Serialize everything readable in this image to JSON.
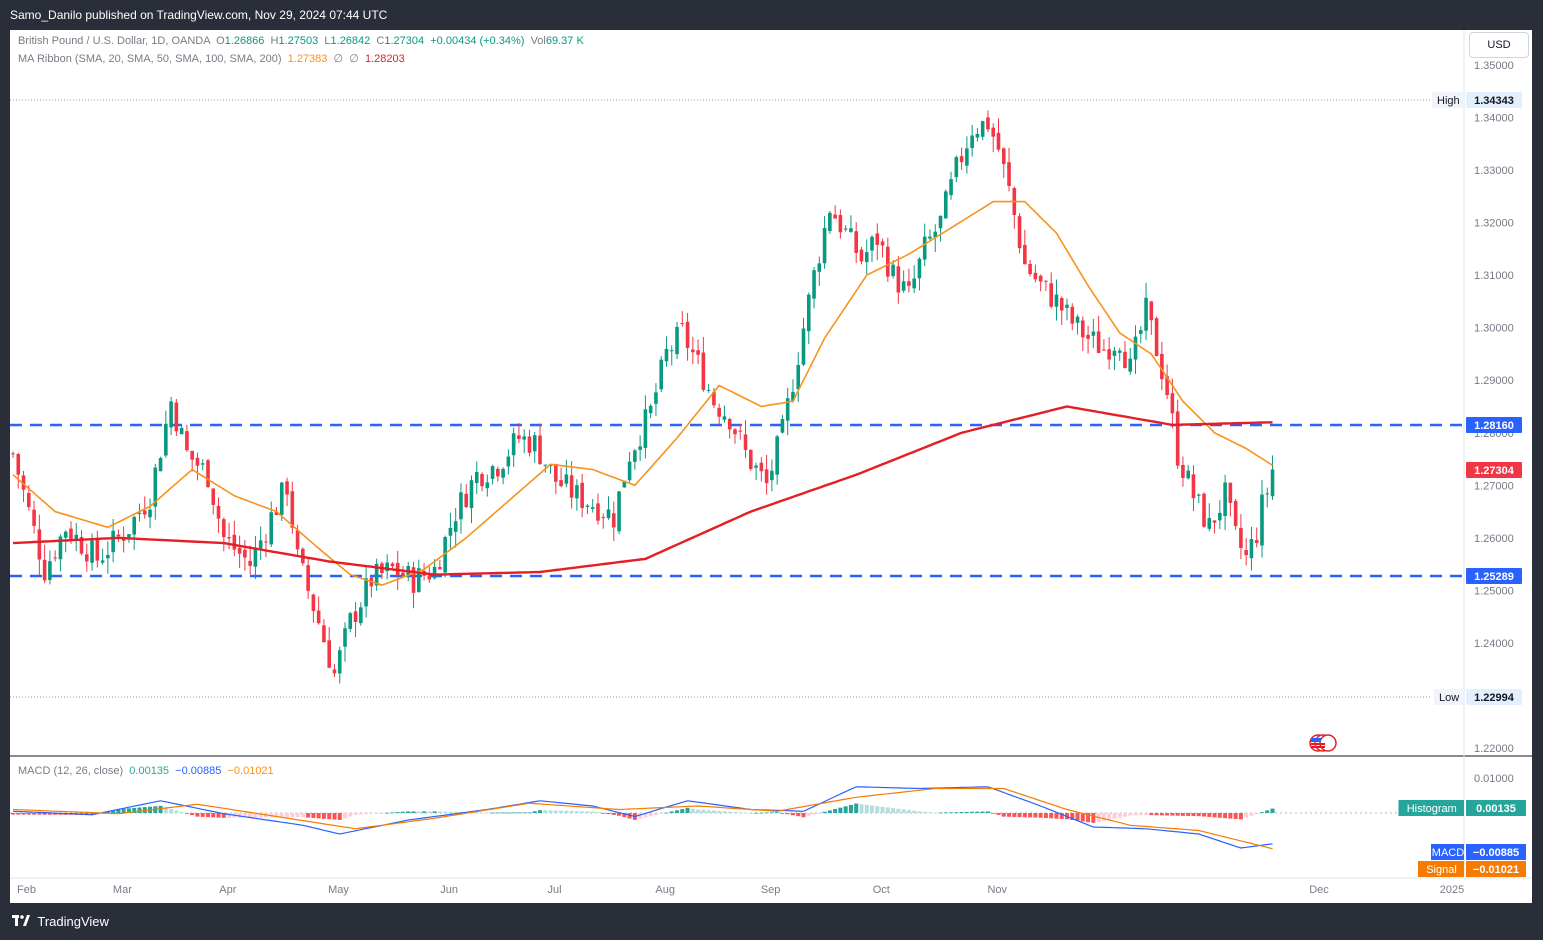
{
  "header": {
    "publisher": "Samo_Danilo published on TradingView.com, Nov 29, 2024 07:44 UTC"
  },
  "legend": {
    "symbol": "British Pound / U.S. Dollar, 1D, OANDA",
    "open_label": "O",
    "open": "1.26866",
    "high_label": "H",
    "high": "1.27503",
    "low_label": "L",
    "low": "1.26842",
    "close_label": "C",
    "close": "1.27304",
    "change": "+0.00434 (+0.34%)",
    "vol_label": "Vol",
    "vol": "69.37 K",
    "ma_ribbon": "MA Ribbon (SMA, 20, SMA, 50, SMA, 100, SMA, 200)",
    "ma20": "1.27383",
    "ma_empty1": "∅",
    "ma_empty2": "∅",
    "ma200": "1.28203",
    "macd": "MACD (12, 26, close)",
    "macd_hist": "0.00135",
    "macd_line": "−0.00885",
    "macd_signal": "−0.01021"
  },
  "currency_button": "USD",
  "footer": {
    "brand": "TradingView"
  },
  "colors": {
    "up": "#089981",
    "down": "#f23645",
    "ma20": "#f7931a",
    "ma200": "#e41e25",
    "level_line": "#2962ff",
    "macd": "#2962ff",
    "signal": "#f57c00",
    "hist_up_strong": "#26a69a",
    "hist_up_weak": "#b2dfdb",
    "hist_down_strong": "#ff5252",
    "hist_down_weak": "#ffcdd2"
  },
  "chart_data": {
    "type": "candlestick",
    "x_axis": {
      "labels": [
        "Feb",
        "Mar",
        "Apr",
        "May",
        "Jun",
        "Jul",
        "Aug",
        "Sep",
        "Oct",
        "Nov",
        "Dec",
        "2025"
      ]
    },
    "y_axis": {
      "range": [
        1.22,
        1.35
      ],
      "ticks": [
        "1.35000",
        "1.34000",
        "1.33000",
        "1.32000",
        "1.31000",
        "1.30000",
        "1.29000",
        "1.28000",
        "1.27000",
        "1.26000",
        "1.25000",
        "1.24000",
        "1.23000",
        "1.22000"
      ]
    },
    "markers": {
      "high_label": "High",
      "high_value": "1.34343",
      "low_label": "Low",
      "low_value": "1.22994",
      "resistance_value": "1.28160",
      "support_value": "1.25289",
      "last_value": "1.27304"
    },
    "macd_axis": {
      "ticks": [
        "0.01000"
      ]
    },
    "macd_markers": {
      "hist_label": "Histogram",
      "hist_value": "0.00135",
      "macd_label": "MACD",
      "macd_value": "−0.00885",
      "signal_label": "Signal",
      "signal_value": "−0.01021"
    },
    "close_path": [
      [
        0,
        1.276
      ],
      [
        6,
        1.254
      ],
      [
        10,
        1.262
      ],
      [
        16,
        1.256
      ],
      [
        22,
        1.262
      ],
      [
        26,
        1.268
      ],
      [
        30,
        1.286
      ],
      [
        33,
        1.276
      ],
      [
        37,
        1.272
      ],
      [
        40,
        1.26
      ],
      [
        45,
        1.255
      ],
      [
        49,
        1.264
      ],
      [
        52,
        1.27
      ],
      [
        54,
        1.256
      ],
      [
        58,
        1.244
      ],
      [
        61,
        1.234
      ],
      [
        64,
        1.244
      ],
      [
        68,
        1.252
      ],
      [
        72,
        1.254
      ],
      [
        76,
        1.252
      ],
      [
        80,
        1.254
      ],
      [
        84,
        1.265
      ],
      [
        88,
        1.272
      ],
      [
        92,
        1.274
      ],
      [
        96,
        1.279
      ],
      [
        99,
        1.278
      ],
      [
        103,
        1.271
      ],
      [
        107,
        1.268
      ],
      [
        111,
        1.266
      ],
      [
        114,
        1.264
      ],
      [
        117,
        1.276
      ],
      [
        121,
        1.284
      ],
      [
        124,
        1.295
      ],
      [
        127,
        1.299
      ],
      [
        130,
        1.293
      ],
      [
        133,
        1.286
      ],
      [
        136,
        1.283
      ],
      [
        139,
        1.276
      ],
      [
        143,
        1.27
      ],
      [
        146,
        1.28
      ],
      [
        149,
        1.295
      ],
      [
        152,
        1.31
      ],
      [
        155,
        1.323
      ],
      [
        158,
        1.318
      ],
      [
        161,
        1.313
      ],
      [
        164,
        1.317
      ],
      [
        167,
        1.31
      ],
      [
        170,
        1.306
      ],
      [
        173,
        1.315
      ],
      [
        176,
        1.32
      ],
      [
        179,
        1.33
      ],
      [
        182,
        1.338
      ],
      [
        185,
        1.339
      ],
      [
        187,
        1.334
      ],
      [
        189,
        1.326
      ],
      [
        192,
        1.312
      ],
      [
        195,
        1.308
      ],
      [
        198,
        1.305
      ],
      [
        201,
        1.301
      ],
      [
        204,
        1.298
      ],
      [
        207,
        1.296
      ],
      [
        210,
        1.298
      ],
      [
        212,
        1.292
      ],
      [
        215,
        1.303
      ],
      [
        217,
        1.296
      ],
      [
        219,
        1.288
      ],
      [
        221,
        1.276
      ],
      [
        224,
        1.268
      ],
      [
        227,
        1.262
      ],
      [
        230,
        1.268
      ],
      [
        232,
        1.26
      ],
      [
        234,
        1.256
      ],
      [
        236,
        1.261
      ],
      [
        237,
        1.266
      ],
      [
        238,
        1.269
      ],
      [
        239,
        1.273
      ]
    ],
    "sma20": [
      [
        0,
        1.272
      ],
      [
        8,
        1.265
      ],
      [
        18,
        1.262
      ],
      [
        26,
        1.266
      ],
      [
        34,
        1.273
      ],
      [
        42,
        1.268
      ],
      [
        50,
        1.265
      ],
      [
        58,
        1.258
      ],
      [
        64,
        1.253
      ],
      [
        70,
        1.251
      ],
      [
        78,
        1.254
      ],
      [
        86,
        1.26
      ],
      [
        94,
        1.267
      ],
      [
        102,
        1.274
      ],
      [
        110,
        1.273
      ],
      [
        118,
        1.27
      ],
      [
        126,
        1.279
      ],
      [
        134,
        1.289
      ],
      [
        142,
        1.285
      ],
      [
        148,
        1.286
      ],
      [
        154,
        1.298
      ],
      [
        162,
        1.31
      ],
      [
        170,
        1.314
      ],
      [
        178,
        1.319
      ],
      [
        186,
        1.324
      ],
      [
        192,
        1.324
      ],
      [
        198,
        1.318
      ],
      [
        204,
        1.308
      ],
      [
        210,
        1.299
      ],
      [
        216,
        1.295
      ],
      [
        222,
        1.286
      ],
      [
        228,
        1.28
      ],
      [
        234,
        1.277
      ],
      [
        239,
        1.2738
      ]
    ],
    "sma200": [
      [
        0,
        1.259
      ],
      [
        20,
        1.26
      ],
      [
        40,
        1.259
      ],
      [
        60,
        1.2555
      ],
      [
        80,
        1.253
      ],
      [
        100,
        1.2535
      ],
      [
        120,
        1.256
      ],
      [
        140,
        1.265
      ],
      [
        160,
        1.272
      ],
      [
        180,
        1.28
      ],
      [
        200,
        1.285
      ],
      [
        220,
        1.2815
      ],
      [
        239,
        1.282
      ]
    ],
    "macd_line_path": [
      [
        0,
        0.0005
      ],
      [
        15,
        -0.0005
      ],
      [
        28,
        0.0035
      ],
      [
        40,
        -0.0002
      ],
      [
        55,
        -0.0035
      ],
      [
        62,
        -0.006
      ],
      [
        75,
        -0.002
      ],
      [
        90,
        0.001
      ],
      [
        100,
        0.0035
      ],
      [
        110,
        0.002
      ],
      [
        118,
        -0.001
      ],
      [
        128,
        0.0035
      ],
      [
        140,
        0.001
      ],
      [
        150,
        0.0005
      ],
      [
        160,
        0.0075
      ],
      [
        172,
        0.007
      ],
      [
        185,
        0.0075
      ],
      [
        195,
        0.002
      ],
      [
        205,
        -0.004
      ],
      [
        215,
        -0.0045
      ],
      [
        225,
        -0.006
      ],
      [
        233,
        -0.01
      ],
      [
        239,
        -0.0088
      ]
    ],
    "signal_line_path": [
      [
        0,
        0.001
      ],
      [
        20,
        -0.0002
      ],
      [
        35,
        0.0025
      ],
      [
        50,
        -0.001
      ],
      [
        65,
        -0.0045
      ],
      [
        80,
        -0.0015
      ],
      [
        98,
        0.0028
      ],
      [
        115,
        0.001
      ],
      [
        130,
        0.002
      ],
      [
        145,
        0.0005
      ],
      [
        160,
        0.0045
      ],
      [
        175,
        0.007
      ],
      [
        188,
        0.007
      ],
      [
        200,
        0.001
      ],
      [
        212,
        -0.0035
      ],
      [
        225,
        -0.005
      ],
      [
        239,
        -0.0102
      ]
    ]
  }
}
